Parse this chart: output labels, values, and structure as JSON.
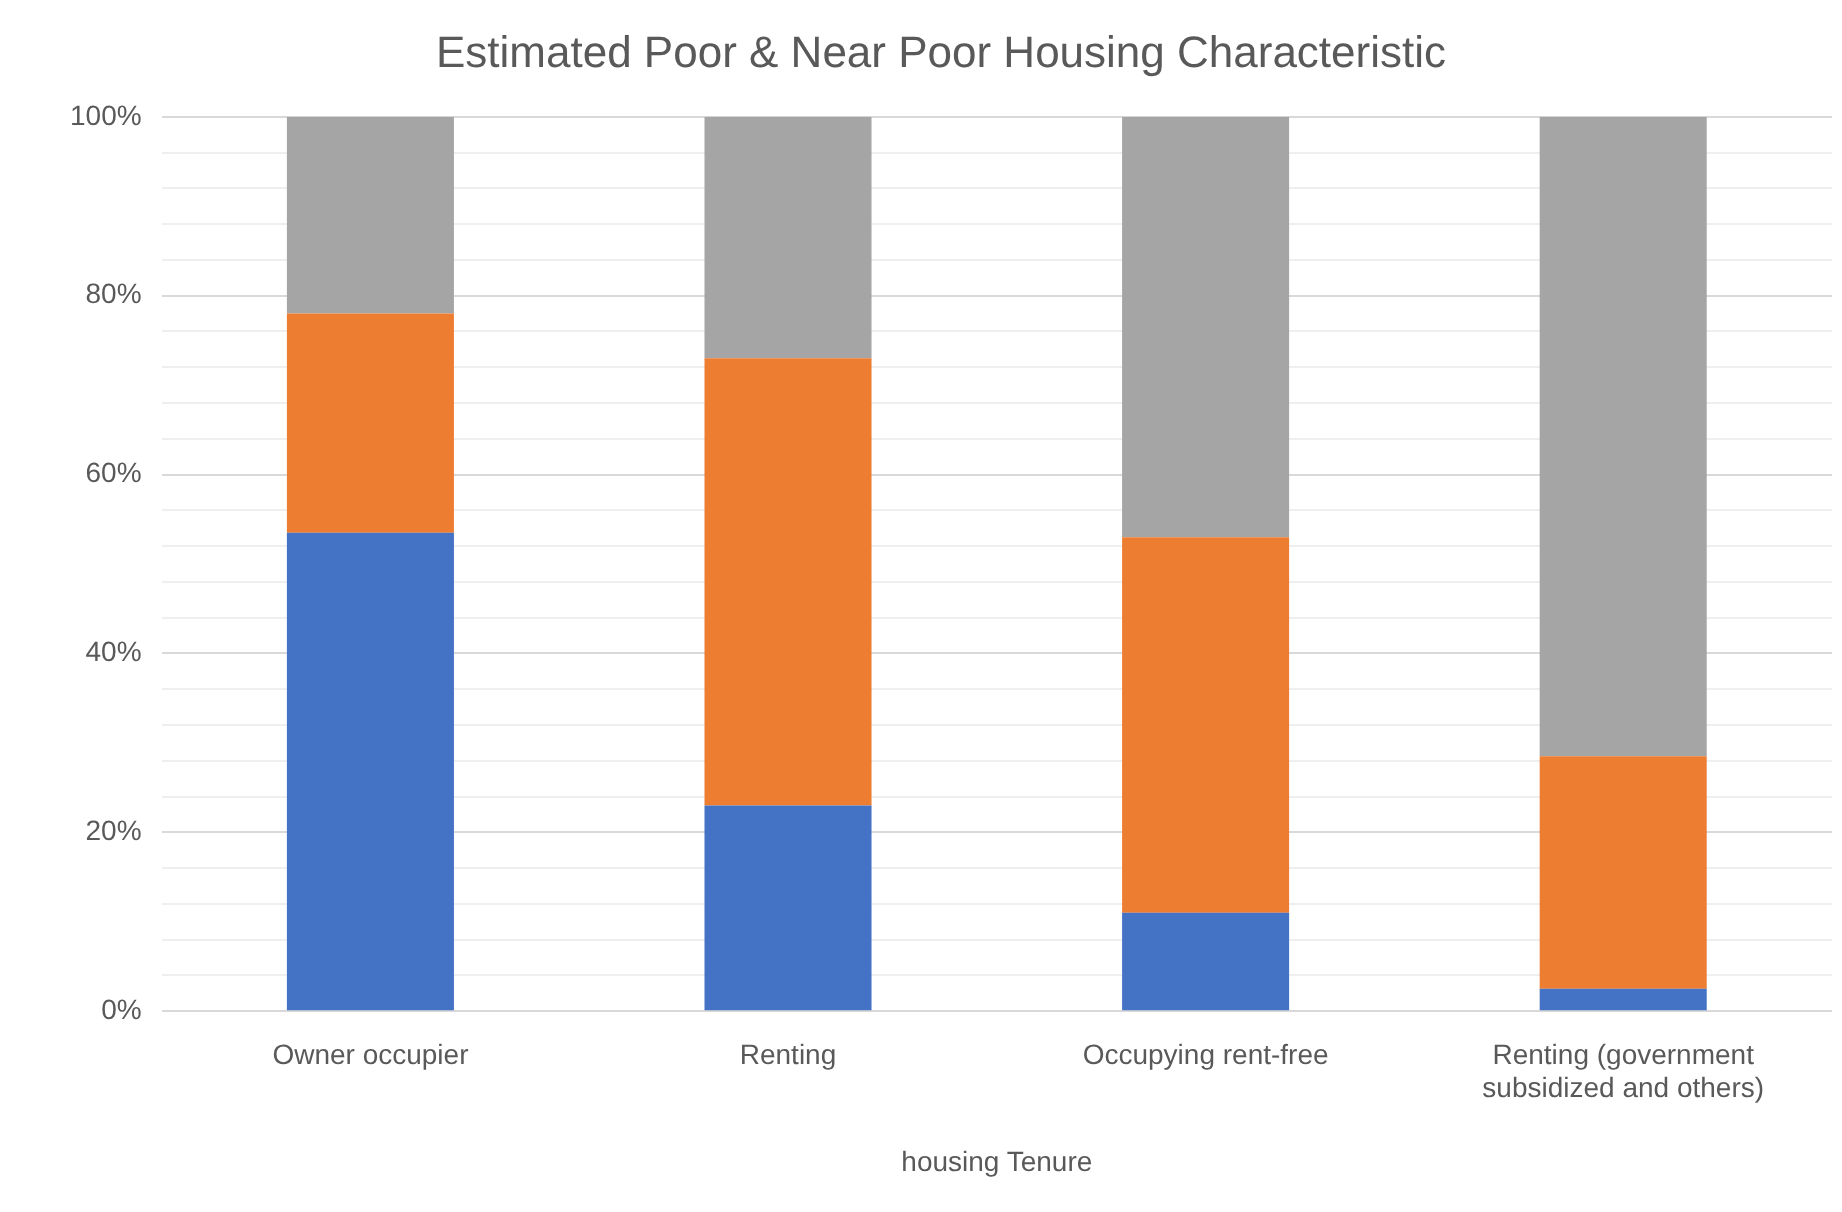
{
  "chart_data": {
    "type": "bar",
    "title": "Estimated Poor & Near Poor Housing Characteristic",
    "xlabel": "housing Tenure",
    "categories": [
      "Owner occupier",
      "Renting",
      "Occupying rent-free",
      "Renting (government subsidized and others)"
    ],
    "series": [
      {
        "color": "#4472c4",
        "values": [
          53.5,
          23,
          11,
          2.5
        ]
      },
      {
        "color": "#ed7d31",
        "values": [
          24.5,
          50,
          42,
          26
        ]
      },
      {
        "color": "#a5a5a5",
        "values": [
          22,
          27,
          47,
          71.5
        ]
      }
    ],
    "stacked": true,
    "ylim": [
      0,
      100
    ],
    "yticks": [
      {
        "value": 0,
        "label": "0%"
      },
      {
        "value": 4,
        "label": null
      },
      {
        "value": 8,
        "label": null
      },
      {
        "value": 12,
        "label": null
      },
      {
        "value": 16,
        "label": null
      },
      {
        "value": 20,
        "label": "20%"
      },
      {
        "value": 24,
        "label": null
      },
      {
        "value": 28,
        "label": null
      },
      {
        "value": 32,
        "label": null
      },
      {
        "value": 36,
        "label": null
      },
      {
        "value": 40,
        "label": "40%"
      },
      {
        "value": 44,
        "label": null
      },
      {
        "value": 48,
        "label": null
      },
      {
        "value": 52,
        "label": null
      },
      {
        "value": 56,
        "label": null
      },
      {
        "value": 60,
        "label": "60%"
      },
      {
        "value": 64,
        "label": null
      },
      {
        "value": 68,
        "label": null
      },
      {
        "value": 72,
        "label": null
      },
      {
        "value": 76,
        "label": null
      },
      {
        "value": 80,
        "label": "80%"
      },
      {
        "value": 84,
        "label": null
      },
      {
        "value": 88,
        "label": null
      },
      {
        "value": 92,
        "label": null
      },
      {
        "value": 96,
        "label": null
      },
      {
        "value": 100,
        "label": "100%"
      }
    ],
    "grid": "y"
  }
}
